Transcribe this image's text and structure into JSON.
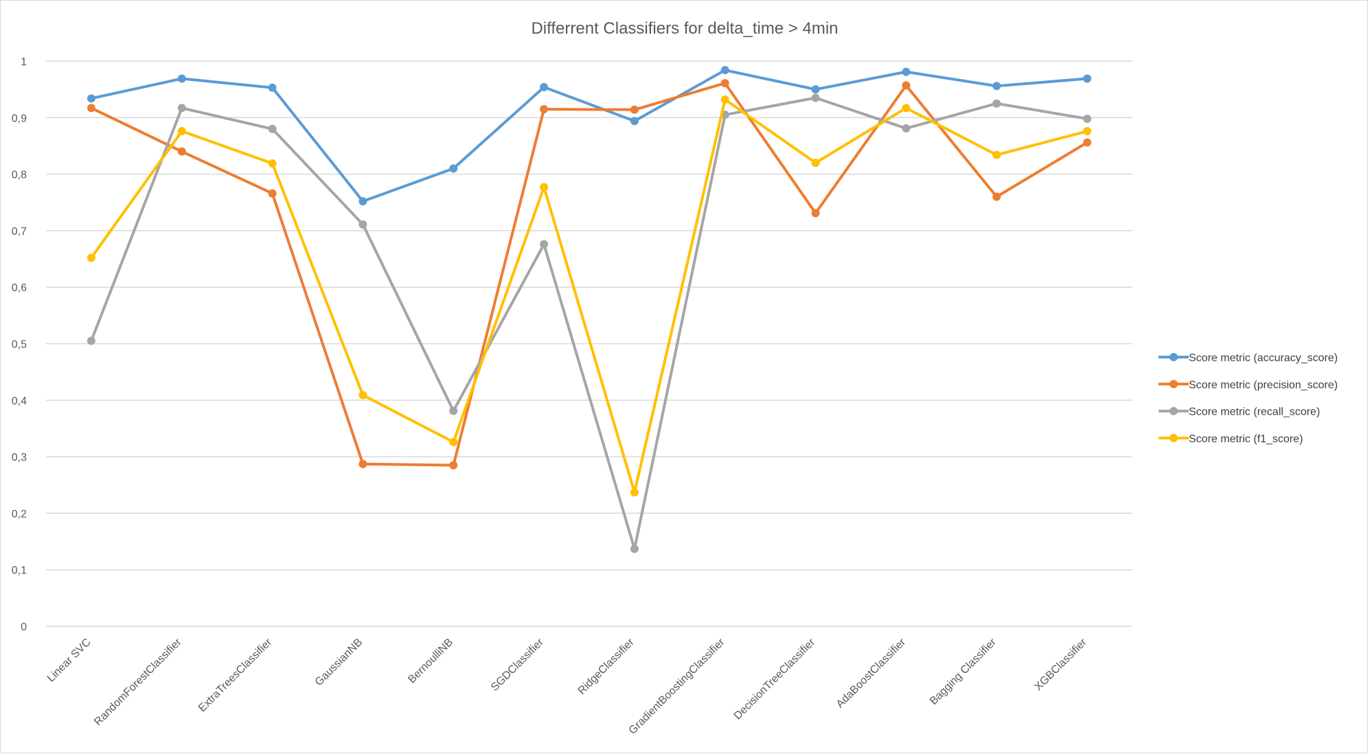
{
  "chart_data": {
    "type": "line",
    "title": "Differrent  Classifiers for delta_time > 4min",
    "xlabel": "",
    "ylabel": "",
    "ylim": [
      0,
      1
    ],
    "yticks": [
      "0",
      "0,1",
      "0,2",
      "0,3",
      "0,4",
      "0,5",
      "0,6",
      "0,7",
      "0,8",
      "0,9",
      "1"
    ],
    "grid": true,
    "legend_position": "right",
    "categories": [
      "Linear SVC",
      "RandomForestClassifier",
      "ExtraTreesClassifier",
      "GaussianNB",
      "BernoulliNB",
      "SGDClassifier",
      "RidgeClassifier",
      "GradientBoostingClassifier",
      "DecisionTreeClassifier",
      "AdaBoostClassifier",
      "Bagging Classifier",
      "XGBClassifier"
    ],
    "series": [
      {
        "name": "Score metric (accuracy_score)",
        "color": "#5b9bd5",
        "values": [
          0.934,
          0.969,
          0.953,
          0.752,
          0.81,
          0.954,
          0.894,
          0.984,
          0.95,
          0.981,
          0.956,
          0.969
        ]
      },
      {
        "name": "Score metric (precision_score)",
        "color": "#ed7d31",
        "values": [
          0.917,
          0.84,
          0.766,
          0.287,
          0.285,
          0.915,
          0.914,
          0.961,
          0.731,
          0.957,
          0.76,
          0.856
        ]
      },
      {
        "name": "Score metric (recall_score)",
        "color": "#a5a5a5",
        "values": [
          0.505,
          0.917,
          0.88,
          0.711,
          0.381,
          0.676,
          0.137,
          0.905,
          0.935,
          0.881,
          0.925,
          0.898
        ]
      },
      {
        "name": "Score metric (f1_score)",
        "color": "#ffc000",
        "values": [
          0.652,
          0.876,
          0.819,
          0.409,
          0.326,
          0.777,
          0.237,
          0.932,
          0.82,
          0.917,
          0.834,
          0.876
        ]
      }
    ]
  }
}
